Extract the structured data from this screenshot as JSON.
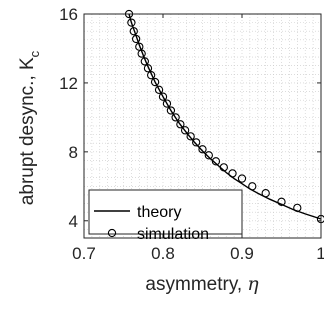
{
  "chart_data": {
    "type": "line",
    "title": "",
    "xlabel": "asymmetry,",
    "xlabel_symbol": "η",
    "ylabel_main": "abrupt desync., K",
    "ylabel_subscript": "c",
    "xlim": [
      0.7,
      1.0
    ],
    "ylim": [
      3,
      16
    ],
    "xticks": [
      0.7,
      0.8,
      0.9,
      1
    ],
    "xtick_labels": [
      "0.7",
      "0.8",
      "0.9",
      "1"
    ],
    "yticks": [
      4,
      8,
      12,
      16
    ],
    "ytick_labels": [
      "4",
      "8",
      "12",
      "16"
    ],
    "grid": "minor-dotted",
    "legend_position": "bottom-left",
    "series": [
      {
        "name": "theory",
        "style": "line",
        "color": "#000000",
        "x": [
          0.757,
          0.76,
          0.765,
          0.77,
          0.775,
          0.78,
          0.79,
          0.8,
          0.81,
          0.82,
          0.83,
          0.84,
          0.85,
          0.86,
          0.87,
          0.88,
          0.89,
          0.9,
          0.91,
          0.92,
          0.935,
          0.95,
          0.965,
          0.98,
          1.0
        ],
        "y": [
          16.0,
          15.5,
          14.85,
          14.2,
          13.6,
          13.05,
          12.05,
          11.2,
          10.4,
          9.7,
          9.1,
          8.55,
          8.05,
          7.6,
          7.2,
          6.8,
          6.45,
          6.15,
          5.85,
          5.6,
          5.25,
          4.95,
          4.65,
          4.4,
          4.1
        ]
      },
      {
        "name": "simulation",
        "style": "markers",
        "marker": "open-circle",
        "color": "#000000",
        "x": [
          0.757,
          0.76,
          0.763,
          0.766,
          0.77,
          0.773,
          0.777,
          0.781,
          0.785,
          0.79,
          0.795,
          0.8,
          0.805,
          0.81,
          0.816,
          0.822,
          0.828,
          0.835,
          0.842,
          0.85,
          0.858,
          0.867,
          0.877,
          0.888,
          0.9,
          0.913,
          0.93,
          0.95,
          0.97,
          1.0
        ],
        "y": [
          16.0,
          15.5,
          15.0,
          14.55,
          14.1,
          13.7,
          13.25,
          12.85,
          12.45,
          12.05,
          11.6,
          11.2,
          10.8,
          10.4,
          10.0,
          9.6,
          9.25,
          8.9,
          8.55,
          8.15,
          7.8,
          7.45,
          7.1,
          6.75,
          6.45,
          6.0,
          5.6,
          5.1,
          4.75,
          4.1
        ]
      }
    ]
  }
}
